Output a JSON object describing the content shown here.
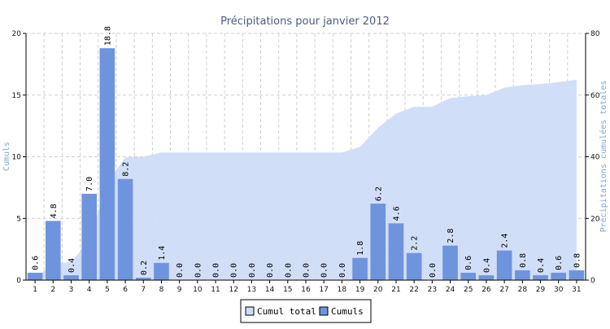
{
  "chart_data": {
    "type": "bar",
    "title": "Précipitations pour janvier 2012",
    "ylabel_left": "Cumuls",
    "ylabel_right": "Précipitations cumulées totales",
    "ylim_left": [
      0,
      20
    ],
    "ylim_right": [
      0,
      80
    ],
    "yticks_left": [
      "0",
      "5",
      "10",
      "15",
      "20"
    ],
    "yticks_right": [
      "0",
      "20",
      "40",
      "60",
      "80"
    ],
    "grid": true,
    "legend_position": "bottom-center",
    "categories": [
      "1",
      "2",
      "3",
      "4",
      "5",
      "6",
      "7",
      "8",
      "9",
      "10",
      "11",
      "12",
      "13",
      "14",
      "15",
      "16",
      "17",
      "18",
      "19",
      "20",
      "21",
      "22",
      "23",
      "24",
      "25",
      "26",
      "27",
      "28",
      "29",
      "30",
      "31"
    ],
    "value_labels": [
      "0.6",
      "4.8",
      "0.4",
      "7.0",
      "18.8",
      "8.2",
      "0.2",
      "1.4",
      "0.0",
      "0.0",
      "0.0",
      "0.0",
      "0.0",
      "0.0",
      "0.0",
      "0.0",
      "0.0",
      "0.0",
      "1.8",
      "6.2",
      "4.6",
      "2.2",
      "0.0",
      "2.8",
      "0.6",
      "0.4",
      "2.4",
      "0.8",
      "0.4",
      "0.6",
      "0.8"
    ],
    "series": [
      {
        "name": "Cumul total",
        "type": "area",
        "axis": "right",
        "color": "#cfdcf7",
        "values": [
          0.6,
          5.4,
          5.8,
          12.8,
          31.6,
          39.8,
          40.0,
          41.4,
          41.4,
          41.4,
          41.4,
          41.4,
          41.4,
          41.4,
          41.4,
          41.4,
          41.4,
          41.4,
          43.2,
          49.4,
          54.0,
          56.2,
          56.2,
          59.0,
          59.6,
          60.0,
          62.4,
          63.2,
          63.6,
          64.2,
          65.0
        ]
      },
      {
        "name": "Cumuls",
        "type": "bar",
        "axis": "left",
        "color": "#6f94de",
        "values": [
          0.6,
          4.8,
          0.4,
          7.0,
          18.8,
          8.2,
          0.2,
          1.4,
          0.0,
          0.0,
          0.0,
          0.0,
          0.0,
          0.0,
          0.0,
          0.0,
          0.0,
          0.0,
          1.8,
          6.2,
          4.6,
          2.2,
          0.0,
          2.8,
          0.6,
          0.4,
          2.4,
          0.8,
          0.4,
          0.6,
          0.8
        ]
      }
    ]
  }
}
